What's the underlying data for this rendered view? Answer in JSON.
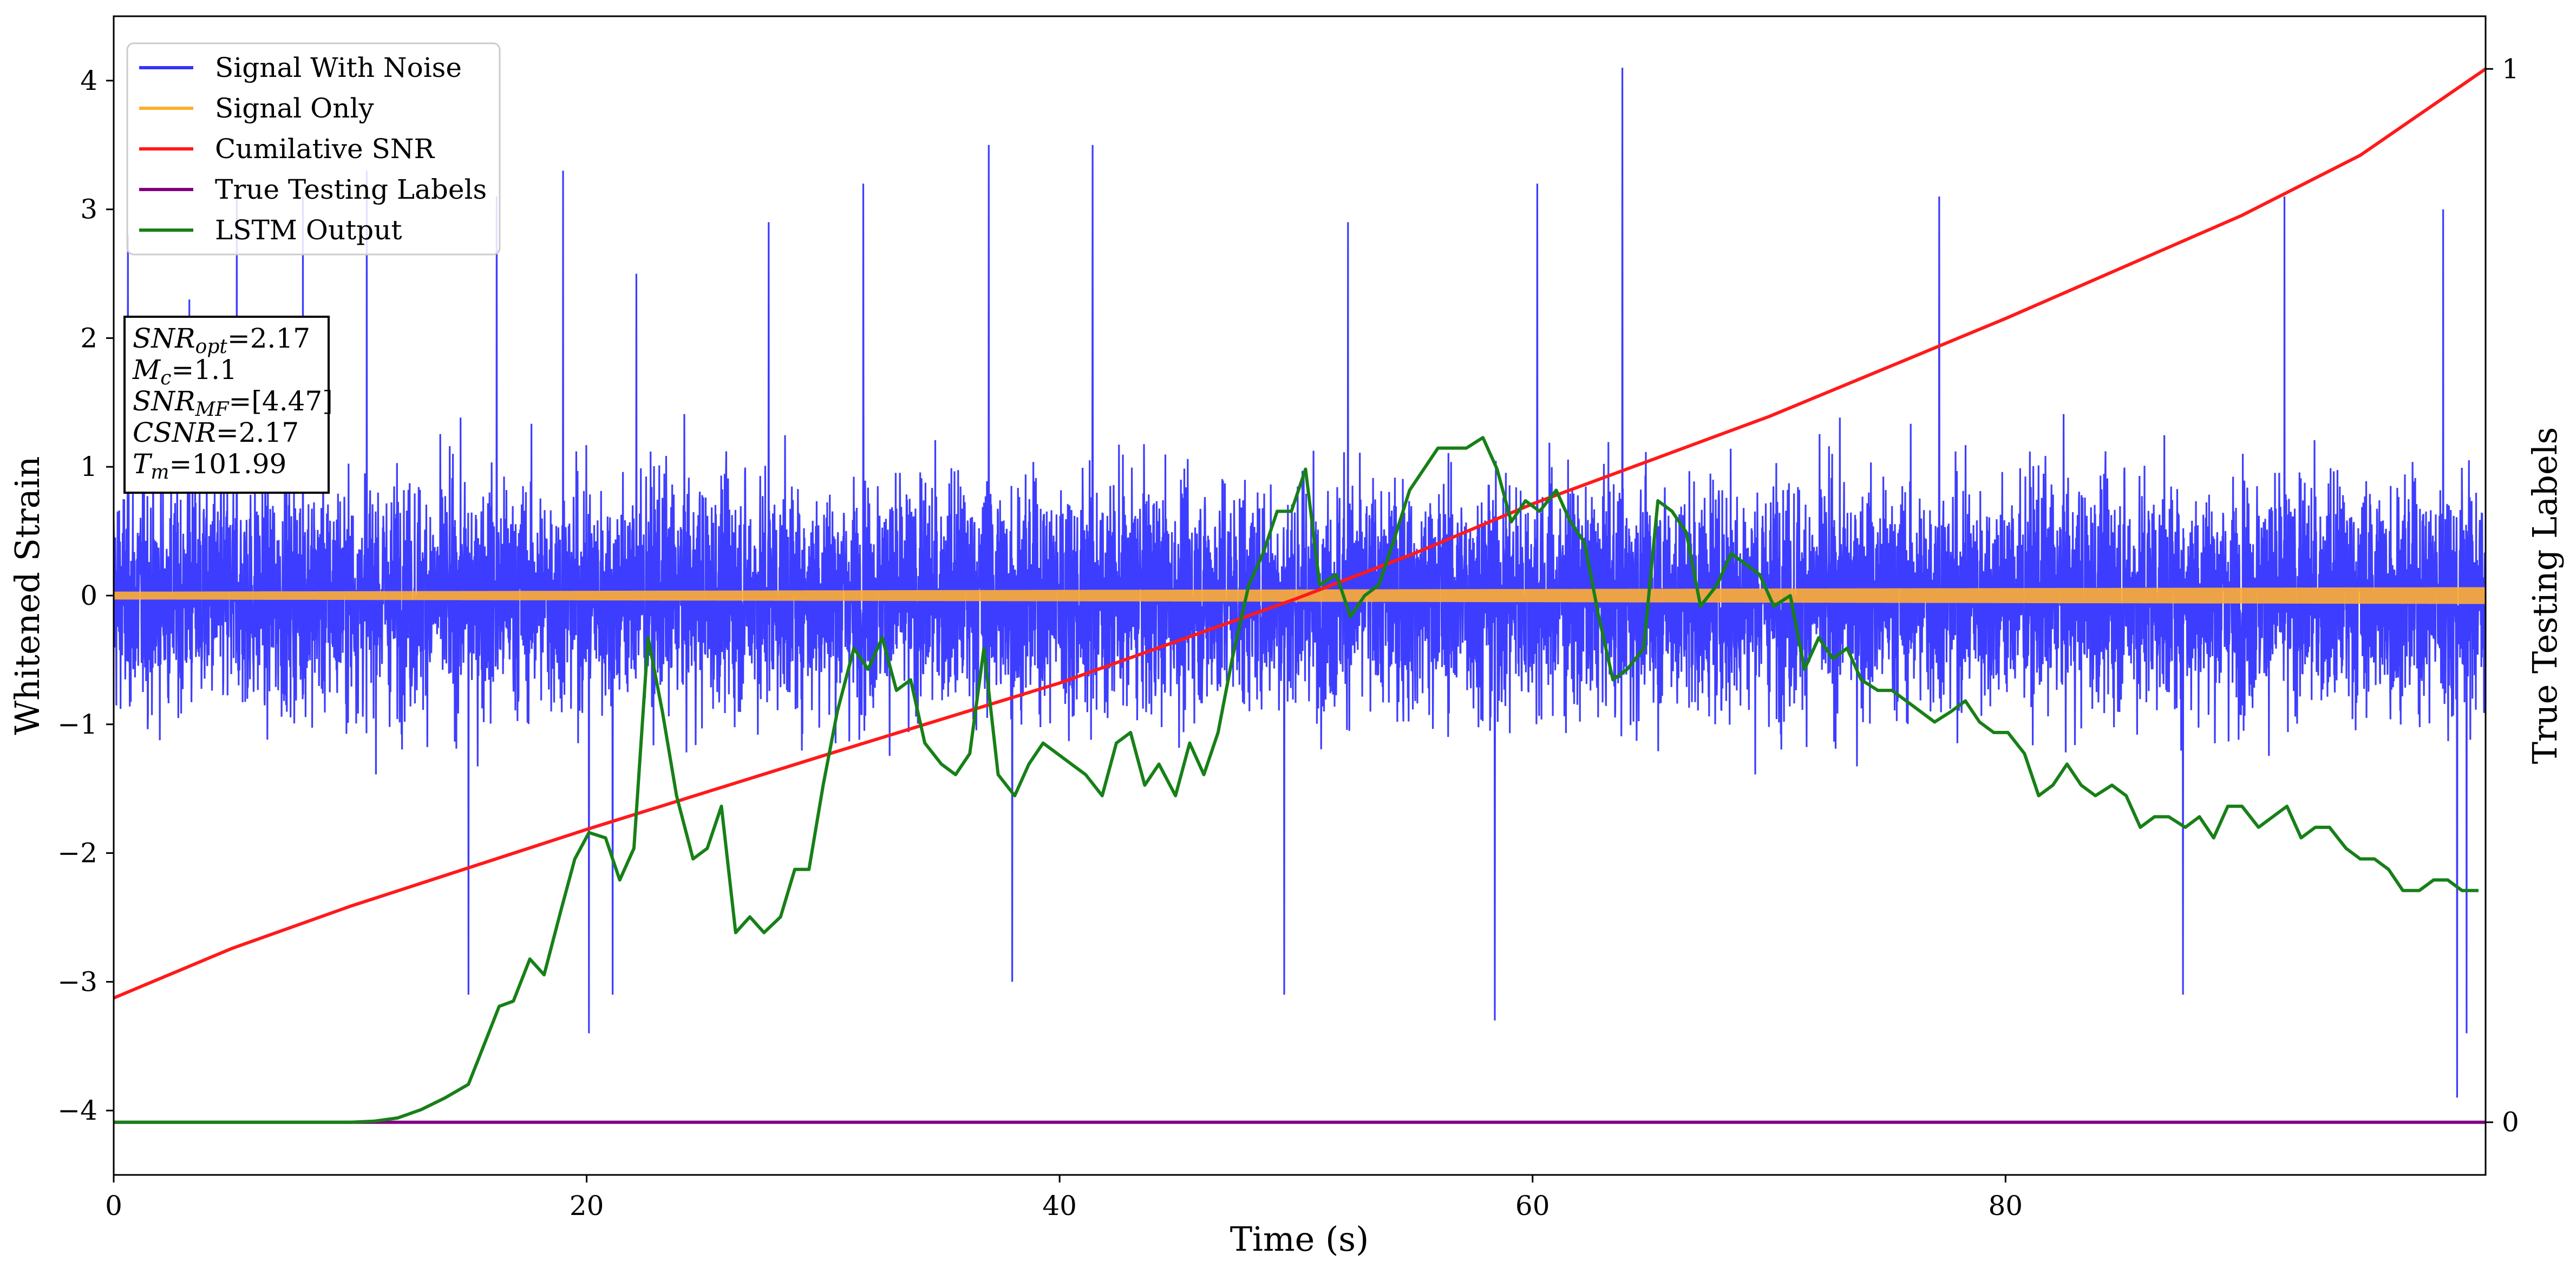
{
  "chart_data": {
    "type": "line",
    "xlabel": "Time (s)",
    "ylabel": "Whitened Strain",
    "ylabel_right": "True Testing Labels",
    "xlim": [
      0,
      100.3
    ],
    "ylim": [
      -4.5,
      4.5
    ],
    "ylim_right": [
      -0.05,
      1.05
    ],
    "x_ticks": [
      0,
      20,
      40,
      60,
      80
    ],
    "y_ticks": [
      -4,
      -3,
      -2,
      -1,
      0,
      1,
      2,
      3,
      4
    ],
    "y_ticks_right": [
      0,
      1
    ],
    "grid": false,
    "legend_position": "top-left",
    "legend": [
      {
        "name": "Signal With Noise",
        "color": "#3333ff"
      },
      {
        "name": "Signal Only",
        "color": "#ffae33"
      },
      {
        "name": "Cumilative SNR",
        "color": "#ff1a1a"
      },
      {
        "name": "True Testing Labels",
        "color": "#800080"
      },
      {
        "name": "LSTM Output",
        "color": "#178017"
      }
    ],
    "annotation": [
      {
        "base": "SNR",
        "sub": "opt",
        "value": "=2.17"
      },
      {
        "base": "M",
        "sub": "c",
        "value": "=1.1"
      },
      {
        "base": "SNR",
        "sub": "MF",
        "value": "=[4.47]"
      },
      {
        "base": "CSNR",
        "sub": "",
        "value": "=2.17"
      },
      {
        "base": "T",
        "sub": "m",
        "value": "=101.99"
      }
    ],
    "series": [
      {
        "name": "Signal With Noise",
        "axis": "left",
        "color": "#3333ff",
        "note": "dense whitened noise, roughly within ±1.3 with spikes to ±2.5–4",
        "spikes": [
          {
            "x": 0.6,
            "y": 2.8
          },
          {
            "x": 3.2,
            "y": 2.3
          },
          {
            "x": 5.2,
            "y": 3.1
          },
          {
            "x": 8.0,
            "y": 3.1
          },
          {
            "x": 10.7,
            "y": 3.3
          },
          {
            "x": 16.2,
            "y": 3.1
          },
          {
            "x": 19.0,
            "y": 3.3
          },
          {
            "x": 22.1,
            "y": 2.5
          },
          {
            "x": 27.7,
            "y": 2.9
          },
          {
            "x": 31.7,
            "y": 3.2
          },
          {
            "x": 37.0,
            "y": 3.5
          },
          {
            "x": 41.4,
            "y": 3.5
          },
          {
            "x": 52.2,
            "y": 2.9
          },
          {
            "x": 60.2,
            "y": 3.2
          },
          {
            "x": 63.8,
            "y": 4.1
          },
          {
            "x": 77.2,
            "y": 3.1
          },
          {
            "x": 91.8,
            "y": 3.1
          },
          {
            "x": 98.5,
            "y": 3.0
          },
          {
            "x": 15.0,
            "y": -3.1
          },
          {
            "x": 20.1,
            "y": -3.4
          },
          {
            "x": 21.1,
            "y": -3.1
          },
          {
            "x": 38.0,
            "y": -3.0
          },
          {
            "x": 49.5,
            "y": -3.1
          },
          {
            "x": 58.4,
            "y": -3.3
          },
          {
            "x": 87.5,
            "y": -3.1
          },
          {
            "x": 99.1,
            "y": -3.9
          },
          {
            "x": 99.5,
            "y": -3.4
          }
        ]
      },
      {
        "name": "Signal Only",
        "axis": "left",
        "color": "#ffae33",
        "note": "chirp with amplitude growing from ~0.03 to ~0.06",
        "amp_start": 0.03,
        "amp_end": 0.065
      },
      {
        "name": "Cumilative SNR",
        "axis": "right",
        "color": "#ff1a1a",
        "x": [
          0,
          5,
          10,
          20,
          30,
          40,
          50,
          55,
          60,
          70,
          80,
          90,
          95,
          100.3
        ],
        "y": [
          0.118,
          0.165,
          0.205,
          0.278,
          0.348,
          0.417,
          0.497,
          0.54,
          0.587,
          0.67,
          0.763,
          0.861,
          0.918,
          1.0
        ]
      },
      {
        "name": "True Testing Labels",
        "axis": "right",
        "color": "#800080",
        "x": [
          0,
          100.3
        ],
        "y": [
          0,
          0
        ]
      },
      {
        "name": "LSTM Output",
        "axis": "right",
        "color": "#178017",
        "x": [
          0,
          5,
          10,
          11,
          12,
          13,
          14,
          15,
          15.6,
          16.3,
          16.9,
          17.6,
          18.2,
          18.9,
          19.5,
          20.1,
          20.8,
          21.4,
          22.0,
          22.6,
          23.2,
          23.8,
          24.5,
          25.1,
          25.7,
          26.3,
          26.9,
          27.5,
          28.2,
          28.8,
          29.4,
          30.0,
          30.6,
          31.3,
          31.9,
          32.5,
          33.1,
          33.7,
          34.3,
          35.0,
          35.6,
          36.2,
          36.8,
          37.4,
          38.1,
          38.7,
          39.3,
          39.9,
          40.5,
          41.1,
          41.8,
          42.4,
          43.0,
          43.6,
          44.2,
          44.9,
          45.5,
          46.1,
          46.7,
          47.3,
          48.0,
          48.6,
          49.2,
          49.8,
          50.4,
          51.0,
          51.7,
          52.3,
          52.9,
          53.5,
          54.1,
          54.8,
          55.4,
          56.0,
          56.6,
          57.2,
          57.9,
          58.5,
          59.1,
          59.7,
          60.3,
          61.0,
          61.6,
          62.2,
          62.8,
          63.4,
          64.0,
          64.7,
          65.3,
          65.9,
          66.5,
          67.1,
          67.8,
          68.4,
          69.0,
          69.6,
          70.2,
          70.9,
          71.5,
          72.1,
          72.7,
          73.3,
          73.9,
          74.6,
          75.2,
          75.8,
          76.4,
          77.0,
          77.7,
          78.3,
          78.9,
          79.5,
          80.1,
          80.8,
          81.4,
          82.0,
          82.6,
          83.2,
          83.8,
          84.5,
          85.1,
          85.7,
          86.3,
          86.9,
          87.6,
          88.2,
          88.8,
          89.4,
          90.0,
          90.7,
          91.3,
          91.9,
          92.5,
          93.1,
          93.7,
          94.4,
          95.0,
          95.6,
          96.2,
          96.8,
          97.5,
          98.1,
          98.7,
          99.3,
          100.0
        ],
        "y": [
          0.0,
          0.0,
          0.0,
          0.001,
          0.004,
          0.012,
          0.023,
          0.036,
          0.07,
          0.11,
          0.115,
          0.155,
          0.14,
          0.2,
          0.25,
          0.275,
          0.27,
          0.23,
          0.26,
          0.46,
          0.39,
          0.31,
          0.25,
          0.26,
          0.3,
          0.18,
          0.195,
          0.18,
          0.195,
          0.24,
          0.24,
          0.32,
          0.39,
          0.45,
          0.43,
          0.46,
          0.41,
          0.42,
          0.36,
          0.34,
          0.33,
          0.35,
          0.45,
          0.33,
          0.31,
          0.34,
          0.36,
          0.35,
          0.34,
          0.33,
          0.31,
          0.36,
          0.37,
          0.32,
          0.34,
          0.31,
          0.36,
          0.33,
          0.37,
          0.44,
          0.51,
          0.54,
          0.58,
          0.58,
          0.62,
          0.51,
          0.52,
          0.48,
          0.5,
          0.51,
          0.55,
          0.6,
          0.62,
          0.64,
          0.64,
          0.64,
          0.65,
          0.62,
          0.57,
          0.59,
          0.58,
          0.6,
          0.57,
          0.55,
          0.48,
          0.42,
          0.43,
          0.45,
          0.59,
          0.58,
          0.56,
          0.49,
          0.51,
          0.54,
          0.53,
          0.52,
          0.49,
          0.5,
          0.43,
          0.46,
          0.44,
          0.45,
          0.42,
          0.41,
          0.41,
          0.4,
          0.39,
          0.38,
          0.39,
          0.4,
          0.38,
          0.37,
          0.37,
          0.35,
          0.31,
          0.32,
          0.34,
          0.32,
          0.31,
          0.32,
          0.31,
          0.28,
          0.29,
          0.29,
          0.28,
          0.29,
          0.27,
          0.3,
          0.3,
          0.28,
          0.29,
          0.3,
          0.27,
          0.28,
          0.28,
          0.26,
          0.25,
          0.25,
          0.24,
          0.22,
          0.22,
          0.23,
          0.23,
          0.22,
          0.22
        ]
      }
    ]
  }
}
